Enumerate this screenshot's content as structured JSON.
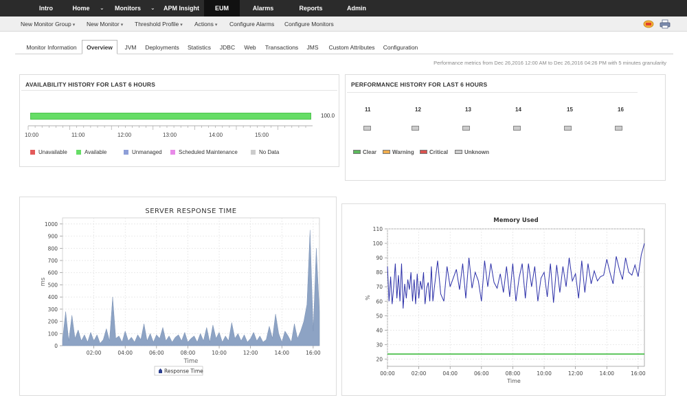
{
  "topnav": {
    "items": [
      "Intro",
      "Home",
      "Monitors",
      "APM Insight",
      "EUM",
      "Alarms",
      "Reports",
      "Admin"
    ],
    "active": "EUM",
    "caret": "⌄"
  },
  "subnav": {
    "items": [
      "New Monitor Group",
      "New Monitor",
      "Threshold Profile",
      "Actions",
      "Configure Alarms",
      "Configure Monitors"
    ],
    "caret": "▾"
  },
  "tabs": {
    "items": [
      "Monitor Information",
      "Overview",
      "JVM",
      "Deployments",
      "Statistics",
      "JDBC",
      "Web",
      "Transactions",
      "JMS",
      "Custom Attributes",
      "Configuration"
    ],
    "active": "Overview"
  },
  "perf_note": "Performance metrics from Dec 26,2016 12:00 AM to Dec 26,2016 04:26 PM with 5 minutes granularity",
  "availability": {
    "title": "AVAILABILITY HISTORY FOR LAST 6 HOURS",
    "value_label": "100.0",
    "value": 100,
    "ticks": [
      "10:00",
      "11:00",
      "12:00",
      "13:00",
      "14:00",
      "15:00"
    ],
    "legend": [
      {
        "label": "Unavailable",
        "color": "#e35a5a"
      },
      {
        "label": "Available",
        "color": "#66dd66"
      },
      {
        "label": "Unmanaged",
        "color": "#8e9fd8"
      },
      {
        "label": "Scheduled Maintenance",
        "color": "#e88ae8"
      },
      {
        "label": "No Data",
        "color": "#cccccc"
      }
    ]
  },
  "performance": {
    "title": "PERFORMANCE HISTORY FOR LAST 6 HOURS",
    "hours": [
      "11",
      "12",
      "13",
      "14",
      "15",
      "16"
    ],
    "status": "Unknown",
    "legend": [
      {
        "label": "Clear",
        "color": "#5cb85c"
      },
      {
        "label": "Warning",
        "color": "#f0ad4e"
      },
      {
        "label": "Critical",
        "color": "#d9534f"
      },
      {
        "label": "Unknown",
        "color": "#cccccc"
      }
    ]
  },
  "chart_data": [
    {
      "type": "area",
      "title": "SERVER RESPONSE TIME",
      "xlabel": "Time",
      "ylabel": "ms",
      "ylim": [
        0,
        1050
      ],
      "yticks": [
        "0",
        "100",
        "200",
        "300",
        "400",
        "500",
        "600",
        "700",
        "800",
        "900",
        "1000"
      ],
      "xticks": [
        "02:00",
        "04:00",
        "06:00",
        "08:00",
        "10:00",
        "12:00",
        "14:00",
        "16:00"
      ],
      "grid": true,
      "color": "#8da3c4",
      "series": [
        {
          "name": "Response Time",
          "x": [
            0,
            0.2,
            0.4,
            0.6,
            0.8,
            1.0,
            1.2,
            1.4,
            1.6,
            1.8,
            2.0,
            2.2,
            2.4,
            2.6,
            2.8,
            3.0,
            3.2,
            3.4,
            3.6,
            3.8,
            4.0,
            4.2,
            4.4,
            4.6,
            4.8,
            5.0,
            5.2,
            5.4,
            5.6,
            5.8,
            6.0,
            6.2,
            6.4,
            6.6,
            6.8,
            7.0,
            7.2,
            7.4,
            7.6,
            7.8,
            8.0,
            8.2,
            8.4,
            8.6,
            8.8,
            9.0,
            9.2,
            9.4,
            9.6,
            9.8,
            10.0,
            10.2,
            10.4,
            10.6,
            10.8,
            11.0,
            11.2,
            11.4,
            11.6,
            11.8,
            12.0,
            12.2,
            12.4,
            12.6,
            12.8,
            13.0,
            13.2,
            13.4,
            13.6,
            13.8,
            14.0,
            14.2,
            14.4,
            14.6,
            14.8,
            15.0,
            15.2,
            15.4,
            15.6,
            15.8,
            16.0,
            16.2,
            16.4
          ],
          "values": [
            50,
            280,
            40,
            250,
            60,
            130,
            40,
            90,
            30,
            110,
            40,
            90,
            20,
            50,
            140,
            40,
            400,
            60,
            80,
            30,
            120,
            40,
            70,
            30,
            90,
            50,
            180,
            40,
            100,
            30,
            90,
            60,
            150,
            40,
            80,
            30,
            70,
            90,
            40,
            110,
            30,
            60,
            80,
            30,
            100,
            40,
            150,
            30,
            170,
            60,
            110,
            30,
            80,
            40,
            190,
            60,
            100,
            40,
            90,
            30,
            60,
            110,
            40,
            80,
            30,
            50,
            160,
            60,
            260,
            100,
            30,
            120,
            80,
            30,
            180,
            60,
            120,
            200,
            340,
            950,
            120,
            800,
            280
          ]
        }
      ]
    },
    {
      "type": "line",
      "title": "Memory Used",
      "xlabel": "Time",
      "ylabel": "%",
      "ylim": [
        15,
        110
      ],
      "yticks": [
        "20",
        "30",
        "40",
        "50",
        "60",
        "70",
        "80",
        "90",
        "100",
        "110"
      ],
      "xticks": [
        "00:00",
        "02:00",
        "04:00",
        "06:00",
        "08:00",
        "10:00",
        "12:00",
        "14:00",
        "16:00"
      ],
      "grid": true,
      "series": [
        {
          "name": "",
          "color": "#2b2fa8",
          "x": [
            0,
            0.1,
            0.2,
            0.3,
            0.4,
            0.5,
            0.6,
            0.7,
            0.8,
            0.9,
            1.0,
            1.1,
            1.2,
            1.3,
            1.4,
            1.5,
            1.6,
            1.7,
            1.8,
            1.9,
            2.0,
            2.1,
            2.2,
            2.3,
            2.4,
            2.5,
            2.6,
            2.7,
            2.8,
            2.9,
            3.0,
            3.2,
            3.4,
            3.6,
            3.8,
            4.0,
            4.2,
            4.4,
            4.6,
            4.8,
            5.0,
            5.2,
            5.4,
            5.6,
            5.8,
            6.0,
            6.2,
            6.4,
            6.6,
            6.8,
            7.0,
            7.2,
            7.4,
            7.6,
            7.8,
            8.0,
            8.2,
            8.4,
            8.6,
            8.8,
            9.0,
            9.2,
            9.4,
            9.6,
            9.8,
            10.0,
            10.2,
            10.4,
            10.6,
            10.8,
            11.0,
            11.2,
            11.4,
            11.6,
            11.8,
            12.0,
            12.2,
            12.4,
            12.6,
            12.8,
            13.0,
            13.2,
            13.4,
            13.6,
            13.8,
            14.0,
            14.2,
            14.4,
            14.6,
            14.8,
            15.0,
            15.2,
            15.4,
            15.6,
            15.8,
            16.0,
            16.2,
            16.4
          ],
          "values": [
            84,
            60,
            77,
            58,
            70,
            86,
            62,
            78,
            60,
            86,
            55,
            72,
            62,
            75,
            68,
            80,
            60,
            75,
            58,
            79,
            62,
            74,
            68,
            80,
            58,
            69,
            73,
            60,
            84,
            60,
            70,
            88,
            65,
            60,
            84,
            70,
            76,
            82,
            68,
            86,
            62,
            90,
            69,
            80,
            74,
            60,
            88,
            70,
            86,
            73,
            69,
            79,
            66,
            84,
            63,
            86,
            60,
            76,
            86,
            62,
            86,
            70,
            84,
            60,
            76,
            80,
            63,
            86,
            59,
            85,
            66,
            84,
            70,
            90,
            74,
            79,
            62,
            88,
            66,
            86,
            72,
            81,
            74,
            77,
            78,
            89,
            80,
            72,
            91,
            82,
            75,
            90,
            80,
            78,
            85,
            77,
            92,
            100
          ]
        },
        {
          "name": "",
          "color": "#2db52d",
          "x": [
            0,
            16.4
          ],
          "values": [
            23.5,
            23.5
          ]
        }
      ]
    }
  ]
}
